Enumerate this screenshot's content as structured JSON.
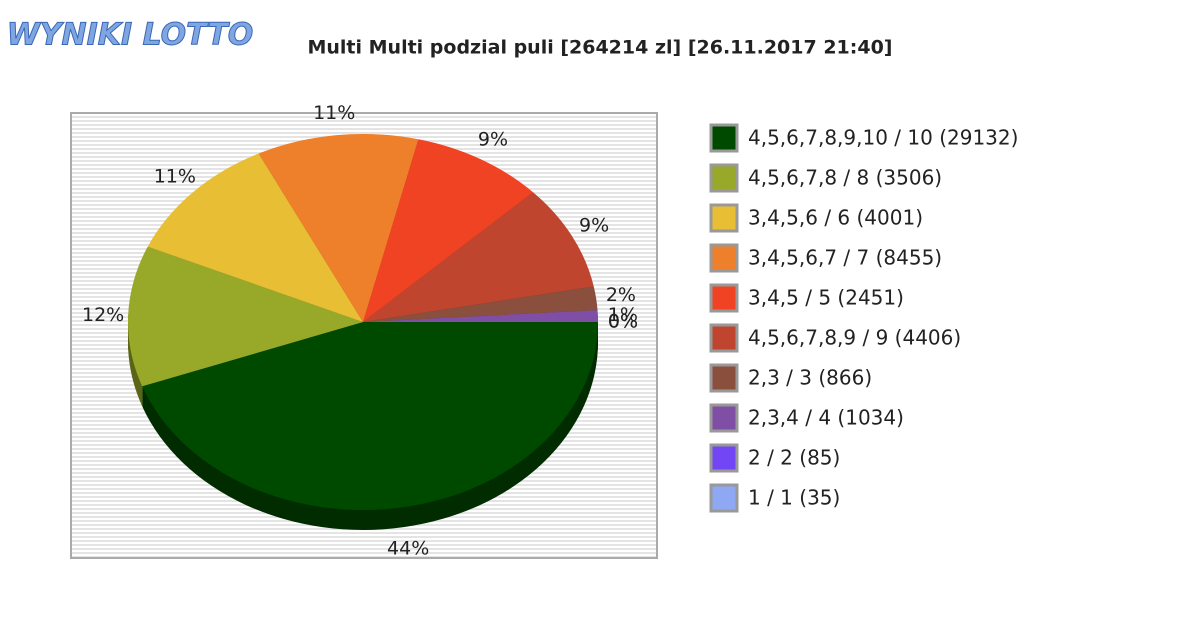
{
  "logo": "WYNIKI LOTTO",
  "chart_data": {
    "type": "pie",
    "title": "Multi Multi podzial puli [264214 zl] [26.11.2017 21:40]",
    "categories": [
      "4,5,6,7,8,9,10 / 10 (29132)",
      "4,5,6,7,8 / 8 (3506)",
      "3,4,5,6 / 6 (4001)",
      "3,4,5,6,7 / 7 (8455)",
      "3,4,5 / 5 (2451)",
      "4,5,6,7,8,9 / 9 (4406)",
      "2,3 / 3 (866)",
      "2,3,4 / 4 (1034)",
      "2 / 2 (85)",
      "1 / 1 (35)"
    ],
    "values": [
      44,
      12,
      11,
      11,
      9,
      9,
      2,
      1,
      0,
      0
    ],
    "value_labels": [
      "44%",
      "12%",
      "11%",
      "11%",
      "9%",
      "9%",
      "2%",
      "1%",
      "0%",
      "0%"
    ],
    "colors": [
      "#004a00",
      "#98a828",
      "#e8be35",
      "#ee7f2b",
      "#f04323",
      "#c0452f",
      "#8b4f3e",
      "#7f4fa5",
      "#7246f4",
      "#8fa8f4"
    ],
    "legend": "right"
  }
}
